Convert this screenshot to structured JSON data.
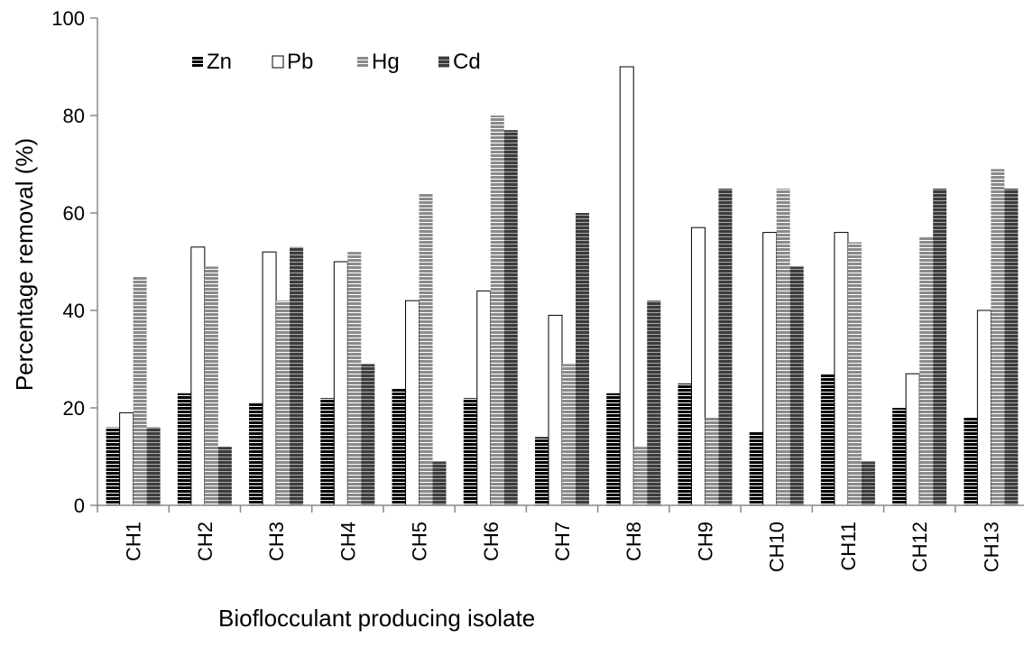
{
  "chart_data": {
    "type": "bar",
    "title": "",
    "xlabel": "Bioflocculant producing isolate",
    "ylabel": "Percentage removal (%)",
    "ylim": [
      0,
      100
    ],
    "yticks": [
      0,
      20,
      40,
      60,
      80,
      100
    ],
    "grid": false,
    "legend_position": "top-left",
    "categories": [
      "CH1",
      "CH2",
      "CH3",
      "CH4",
      "CH5",
      "CH6",
      "CH7",
      "CH8",
      "CH9",
      "CH10",
      "CH11",
      "CH12",
      "CH13"
    ],
    "series": [
      {
        "name": "Zn",
        "color": "#111111",
        "values": [
          16,
          23,
          21,
          22,
          24,
          22,
          14,
          23,
          25,
          15,
          27,
          20,
          18
        ]
      },
      {
        "name": "Pb",
        "color": "#ffffff",
        "values": [
          19,
          53,
          52,
          50,
          42,
          44,
          39,
          90,
          57,
          56,
          56,
          27,
          40
        ]
      },
      {
        "name": "Hg",
        "color": "#999999",
        "values": [
          47,
          49,
          42,
          52,
          64,
          80,
          29,
          12,
          18,
          65,
          54,
          55,
          69
        ]
      },
      {
        "name": "Cd",
        "color": "#555555",
        "values": [
          16,
          12,
          53,
          29,
          9,
          77,
          60,
          42,
          65,
          49,
          9,
          65,
          65
        ]
      }
    ]
  }
}
